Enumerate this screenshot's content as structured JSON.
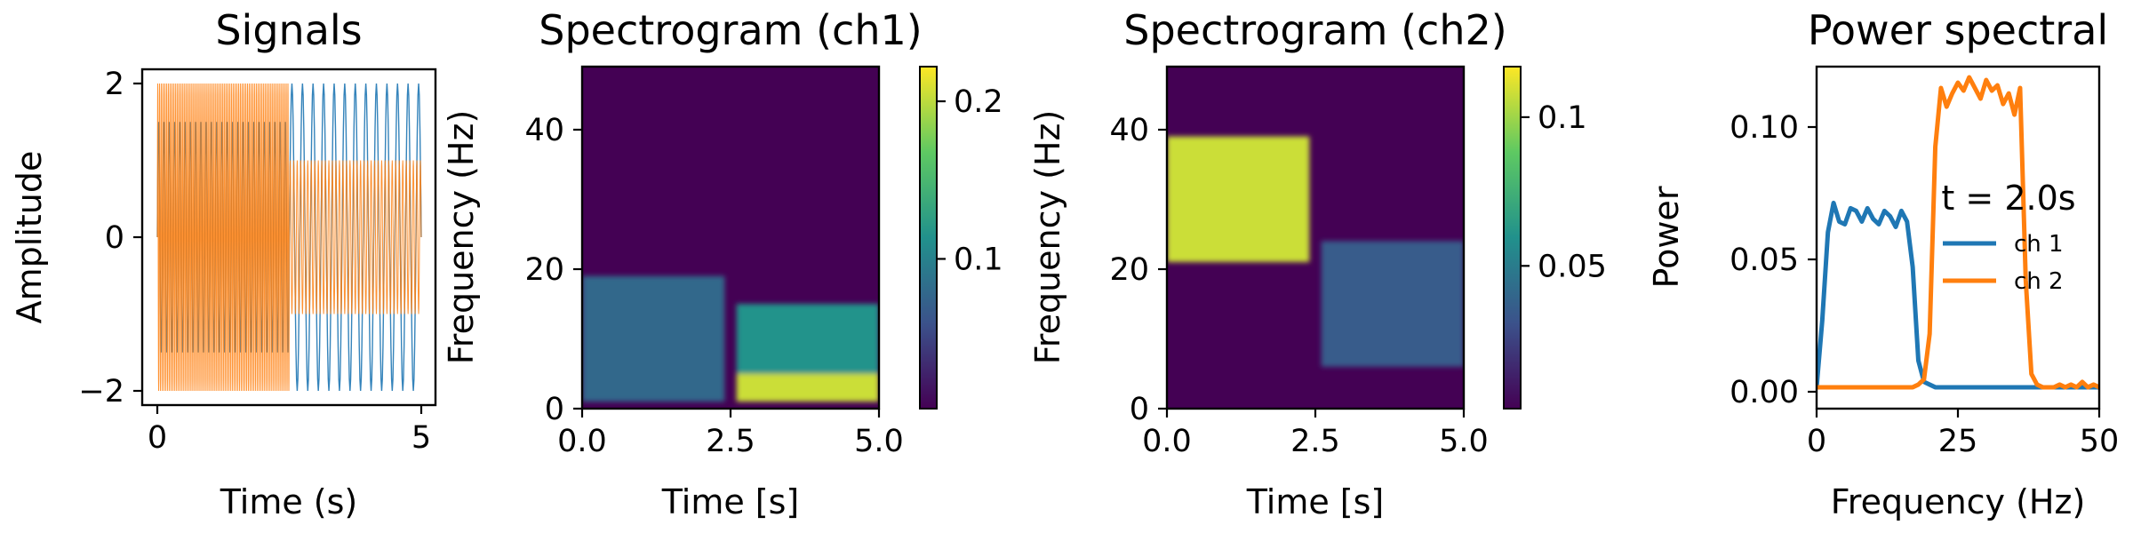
{
  "chart_data": [
    {
      "type": "line",
      "title": "Signals",
      "xlabel": "Time (s)",
      "ylabel": "Amplitude",
      "xlim": [
        0,
        5
      ],
      "ylim": [
        -2,
        2
      ],
      "xticks": [
        0,
        5
      ],
      "yticks": [
        -2,
        0,
        2
      ],
      "ytick_labels": [
        "−2",
        "0",
        "2"
      ],
      "series": [
        {
          "name": "",
          "color": "#1f77b4",
          "segments": [
            {
              "t_start": 0.0,
              "t_end": 2.5,
              "amplitude": 1.5,
              "frequency_hz": 10
            },
            {
              "t_start": 2.5,
              "t_end": 5.0,
              "amplitude": 2.0,
              "frequency_hz": 5
            }
          ]
        },
        {
          "name": "",
          "color": "#ff7f0e",
          "segments": [
            {
              "t_start": 0.0,
              "t_end": 2.5,
              "amplitude": 2.0,
              "frequency_hz": 30
            },
            {
              "t_start": 2.5,
              "t_end": 5.0,
              "amplitude": 1.0,
              "frequency_hz": 15
            }
          ]
        }
      ]
    },
    {
      "type": "heatmap",
      "title": "Spectrogram (ch1)",
      "xlabel": "Time [s]",
      "ylabel": "Frequency (Hz)",
      "xlim": [
        0,
        5
      ],
      "ylim": [
        0,
        49
      ],
      "xticks": [
        0,
        2.5,
        5
      ],
      "xtick_labels": [
        "0.0",
        "2.5",
        "5.0"
      ],
      "yticks": [
        0,
        20,
        40
      ],
      "colormap": "viridis",
      "colorbar_range": [
        0.005,
        0.222
      ],
      "colorbar_ticks": [
        0.1,
        0.2
      ],
      "background_value": 0.005,
      "regions": [
        {
          "t_start": 0.0,
          "t_end": 2.4,
          "f_start": 1,
          "f_end": 19,
          "value": 0.078
        },
        {
          "t_start": 2.6,
          "t_end": 5.0,
          "f_start": 5,
          "f_end": 15,
          "value": 0.115
        },
        {
          "t_start": 2.6,
          "t_end": 5.0,
          "f_start": 1,
          "f_end": 5,
          "value": 0.205
        }
      ]
    },
    {
      "type": "heatmap",
      "title": "Spectrogram (ch2)",
      "xlabel": "Time [s]",
      "ylabel": "Frequency (Hz)",
      "xlim": [
        0,
        5
      ],
      "ylim": [
        0,
        49
      ],
      "xticks": [
        0,
        2.5,
        5
      ],
      "xtick_labels": [
        "0.0",
        "2.5",
        "5.0"
      ],
      "yticks": [
        0,
        20,
        40
      ],
      "colormap": "viridis",
      "colorbar_range": [
        0.002,
        0.117
      ],
      "colorbar_ticks": [
        0.05,
        0.1
      ],
      "background_value": 0.002,
      "regions": [
        {
          "t_start": 0.0,
          "t_end": 2.4,
          "f_start": 21,
          "f_end": 39,
          "value": 0.108
        },
        {
          "t_start": 2.6,
          "t_end": 5.0,
          "f_start": 6,
          "f_end": 24,
          "value": 0.035
        }
      ]
    },
    {
      "type": "line",
      "title": "Power spectral",
      "xlabel": "Frequency (Hz)",
      "ylabel": "Power",
      "xlim": [
        0,
        50
      ],
      "ylim": [
        -0.008,
        0.12
      ],
      "xticks": [
        0,
        25,
        50
      ],
      "yticks": [
        0.0,
        0.05,
        0.1
      ],
      "ytick_labels": [
        "0.00",
        "0.05",
        "0.10"
      ],
      "legend_title": "t = 2.0s",
      "legend_position": "center-right",
      "series": [
        {
          "name": "ch 1",
          "color": "#1f77b4",
          "x": [
            0,
            1,
            2,
            3,
            4,
            5,
            6,
            7,
            8,
            9,
            10,
            11,
            12,
            13,
            14,
            15,
            16,
            17,
            18,
            19,
            20,
            21,
            22,
            23,
            24,
            25,
            26,
            27,
            28,
            29,
            30,
            31,
            32,
            33,
            34,
            35,
            36,
            37,
            38,
            39,
            40,
            41,
            42,
            43,
            44,
            45,
            46,
            47,
            48,
            49,
            50
          ],
          "y": [
            0,
            0.025,
            0.058,
            0.069,
            0.062,
            0.061,
            0.067,
            0.066,
            0.062,
            0.067,
            0.063,
            0.061,
            0.066,
            0.064,
            0.06,
            0.066,
            0.062,
            0.045,
            0.01,
            0.002,
            0.001,
            0,
            0,
            0,
            0,
            0,
            0,
            0,
            0,
            0,
            0,
            0,
            0,
            0,
            0,
            0,
            0,
            0,
            0,
            0,
            0,
            0,
            0,
            0,
            0,
            0,
            0,
            0,
            0,
            0,
            0
          ]
        },
        {
          "name": "ch 2",
          "color": "#ff7f0e",
          "x": [
            0,
            1,
            2,
            3,
            4,
            5,
            6,
            7,
            8,
            9,
            10,
            11,
            12,
            13,
            14,
            15,
            16,
            17,
            18,
            19,
            20,
            21,
            22,
            23,
            24,
            25,
            26,
            27,
            28,
            29,
            30,
            31,
            32,
            33,
            34,
            35,
            36,
            37,
            38,
            39,
            40,
            41,
            42,
            43,
            44,
            45,
            46,
            47,
            48,
            49,
            50
          ],
          "y": [
            0,
            0,
            0,
            0,
            0,
            0,
            0,
            0,
            0,
            0,
            0,
            0,
            0,
            0,
            0,
            0,
            0,
            0,
            0.001,
            0.003,
            0.02,
            0.09,
            0.112,
            0.105,
            0.11,
            0.114,
            0.111,
            0.116,
            0.112,
            0.108,
            0.115,
            0.111,
            0.113,
            0.106,
            0.11,
            0.102,
            0.112,
            0.04,
            0.005,
            0.001,
            0,
            0,
            0,
            0.001,
            0,
            0.001,
            0,
            0.002,
            0,
            0.001,
            0
          ]
        }
      ]
    }
  ]
}
